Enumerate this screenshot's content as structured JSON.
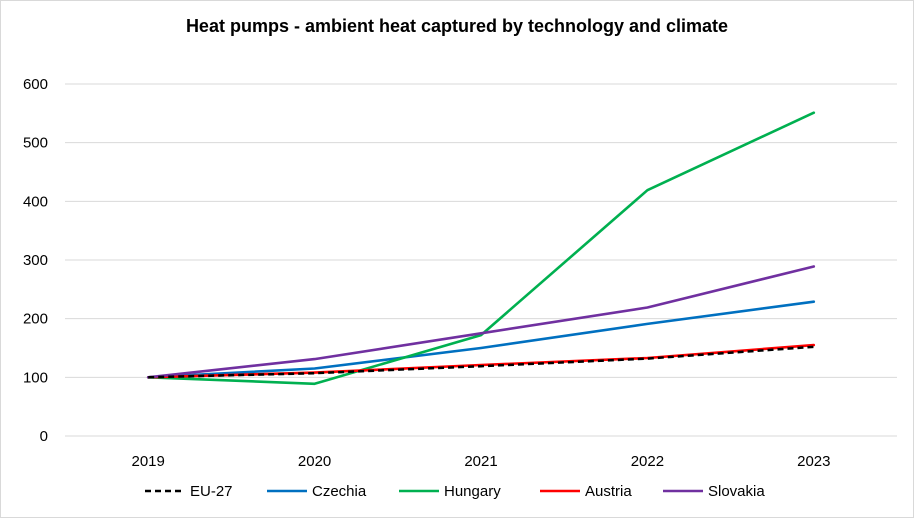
{
  "chart_data": {
    "type": "line",
    "title": "Heat pumps - ambient heat captured by technology and climate",
    "xlabel": "",
    "ylabel": "",
    "categories": [
      "2019",
      "2020",
      "2021",
      "2022",
      "2023"
    ],
    "ylim": [
      0,
      600
    ],
    "yticks": [
      0,
      100,
      200,
      300,
      400,
      500,
      600
    ],
    "grid": true,
    "legend_position": "bottom",
    "series": [
      {
        "name": "EU-27",
        "color": "#000000",
        "dash": true,
        "values": [
          100,
          107,
          119,
          132,
          152
        ]
      },
      {
        "name": "Czechia",
        "color": "#0070C0",
        "dash": false,
        "values": [
          100,
          115,
          150,
          191,
          229
        ]
      },
      {
        "name": "Hungary",
        "color": "#00B050",
        "dash": false,
        "values": [
          100,
          89,
          172,
          419,
          551
        ]
      },
      {
        "name": "Austria",
        "color": "#FF0000",
        "dash": false,
        "values": [
          100,
          108,
          121,
          133,
          155
        ]
      },
      {
        "name": "Slovakia",
        "color": "#7030A0",
        "dash": false,
        "values": [
          100,
          131,
          175,
          219,
          289
        ]
      }
    ]
  }
}
